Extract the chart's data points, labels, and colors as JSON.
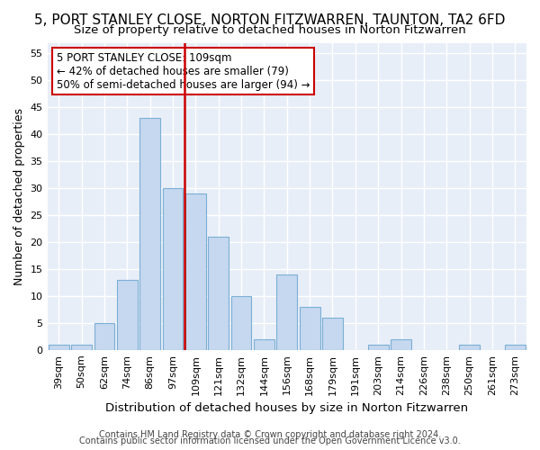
{
  "title": "5, PORT STANLEY CLOSE, NORTON FITZWARREN, TAUNTON, TA2 6FD",
  "subtitle": "Size of property relative to detached houses in Norton Fitzwarren",
  "xlabel": "Distribution of detached houses by size in Norton Fitzwarren",
  "ylabel": "Number of detached properties",
  "footer_line1": "Contains HM Land Registry data © Crown copyright and database right 2024.",
  "footer_line2": "Contains public sector information licensed under the Open Government Licence v3.0.",
  "bar_labels": [
    "39sqm",
    "50sqm",
    "62sqm",
    "74sqm",
    "86sqm",
    "97sqm",
    "109sqm",
    "121sqm",
    "132sqm",
    "144sqm",
    "156sqm",
    "168sqm",
    "179sqm",
    "191sqm",
    "203sqm",
    "214sqm",
    "226sqm",
    "238sqm",
    "250sqm",
    "261sqm",
    "273sqm"
  ],
  "bar_values": [
    1,
    1,
    5,
    13,
    43,
    30,
    29,
    21,
    10,
    2,
    14,
    8,
    6,
    0,
    1,
    2,
    0,
    0,
    1,
    0,
    1
  ],
  "bar_color": "#c5d8ef",
  "bar_edge_color": "#7bafd4",
  "highlight_index": 6,
  "highlight_color": "#cc0000",
  "ylim": [
    0,
    57
  ],
  "yticks": [
    0,
    5,
    10,
    15,
    20,
    25,
    30,
    35,
    40,
    45,
    50,
    55
  ],
  "annotation_text": "5 PORT STANLEY CLOSE: 109sqm\n← 42% of detached houses are smaller (79)\n50% of semi-detached houses are larger (94) →",
  "annotation_box_color": "#ffffff",
  "annotation_box_edge": "#cc0000",
  "bg_color": "#ffffff",
  "plot_bg_color": "#e8eef8",
  "grid_color": "#ffffff",
  "title_fontsize": 11,
  "subtitle_fontsize": 9.5,
  "ylabel_fontsize": 9,
  "xlabel_fontsize": 9.5,
  "tick_fontsize": 8,
  "annotation_fontsize": 8.5,
  "footer_fontsize": 7
}
